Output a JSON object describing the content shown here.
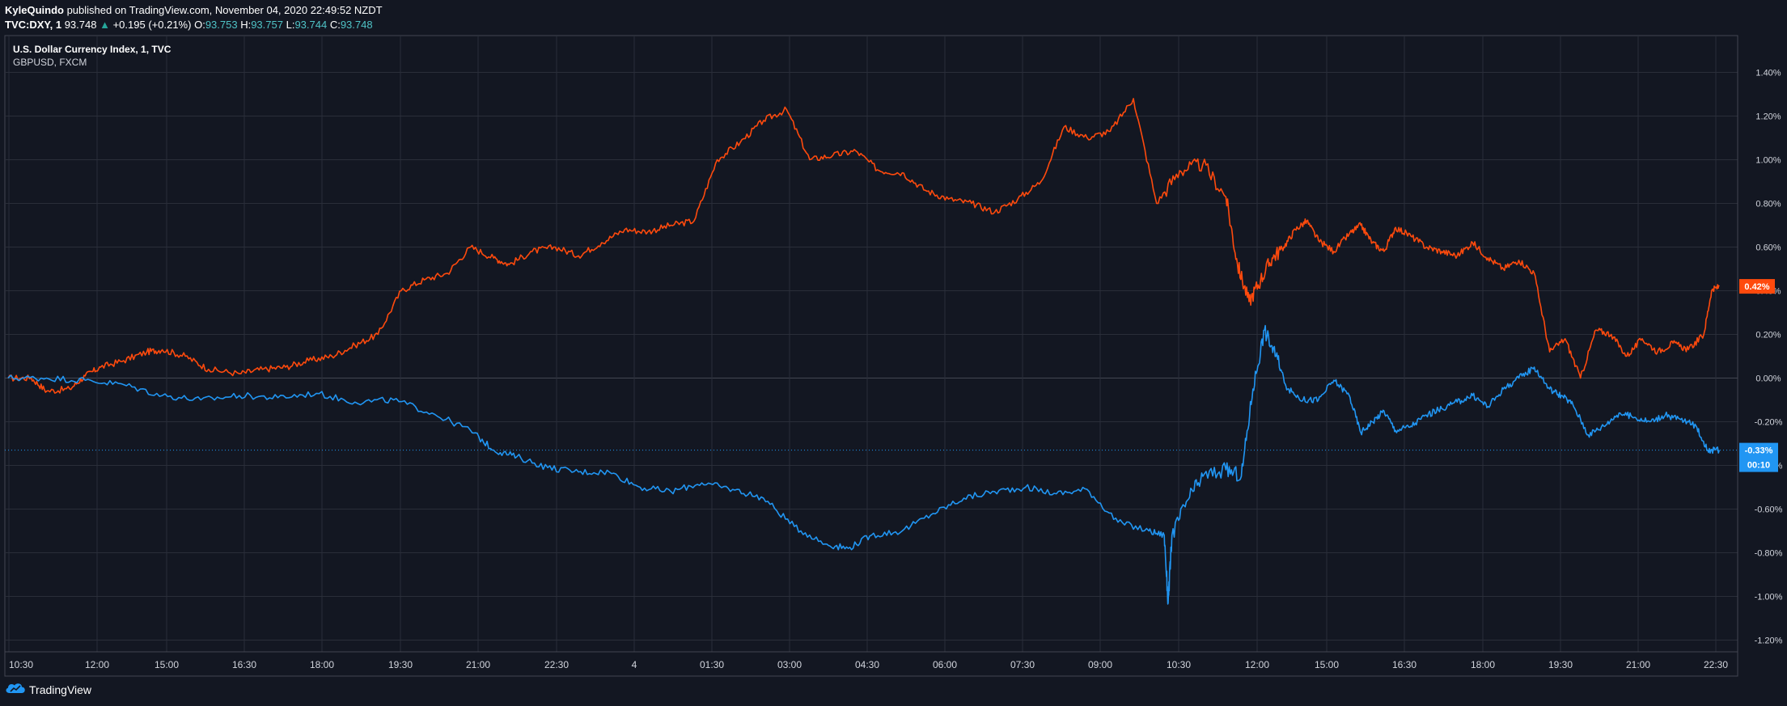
{
  "header": {
    "author": "KyleQuindo",
    "published_text": "published on TradingView.com, November 04, 2020 22:49:52 NZDT",
    "symbol": "TVC:DXY, 1",
    "last": "93.748",
    "up_arrow": "▲",
    "change": "+0.195 (+0.21%)",
    "o_label": "O:",
    "o_value": "93.753",
    "h_label": "H:",
    "h_value": "93.757",
    "l_label": "L:",
    "l_value": "93.744",
    "c_label": "C:",
    "c_value": "93.748"
  },
  "footer": {
    "brand": "TradingView",
    "icon": "tradingview-cloud-icon"
  },
  "colors": {
    "background": "#131722",
    "grid": "#2a2e39",
    "text": "#d1d4dc",
    "dxy": "#2196f3",
    "gbpusd": "#ff4a0d"
  },
  "chart_data": {
    "type": "line",
    "legend": [
      "U.S. Dollar Currency Index, 1, TVC",
      "GBPUSD, FXCM"
    ],
    "x_ticks": [
      "10:30",
      "12:00",
      "15:00",
      "16:30",
      "18:00",
      "19:30",
      "21:00",
      "22:30",
      "4",
      "01:30",
      "03:00",
      "04:30",
      "06:00",
      "07:30",
      "09:00",
      "10:30",
      "12:00",
      "15:00",
      "16:30",
      "18:00",
      "19:30",
      "21:00",
      "22:30"
    ],
    "y_ticks": [
      "1.40%",
      "1.20%",
      "1.00%",
      "0.80%",
      "0.60%",
      "0.40%",
      "0.20%",
      "0.00%",
      "-0.20%",
      "-0.40%",
      "-0.60%",
      "-0.80%",
      "-1.00%",
      "-1.20%"
    ],
    "y_tick_values": [
      1.4,
      1.2,
      1.0,
      0.8,
      0.6,
      0.4,
      0.2,
      0.0,
      -0.2,
      -0.4,
      -0.6,
      -0.8,
      -1.0,
      -1.2
    ],
    "ylim": [
      -1.3,
      1.55
    ],
    "x_range": [
      0,
      22.25
    ],
    "series": [
      {
        "name": "GBPUSD, FXCM",
        "last_label": "0.42%",
        "x": [
          0,
          0.3,
          0.5,
          0.8,
          1.0,
          1.2,
          1.5,
          1.8,
          2.0,
          2.3,
          2.6,
          3.0,
          3.3,
          3.6,
          3.9,
          4.2,
          4.5,
          4.8,
          5.1,
          5.4,
          5.7,
          6.0,
          6.3,
          6.5,
          6.8,
          7.1,
          7.4,
          7.7,
          8.0,
          8.3,
          8.6,
          8.9,
          9.2,
          9.5,
          9.8,
          10.1,
          10.4,
          10.7,
          11.0,
          11.3,
          11.6,
          11.9,
          12.2,
          12.5,
          12.8,
          13.1,
          13.4,
          13.7,
          14.0,
          14.3,
          14.6,
          14.9,
          15.2,
          15.5,
          15.8,
          15.95,
          16.1,
          16.25,
          16.4,
          16.55,
          16.7,
          16.85,
          17.0,
          17.2,
          17.4,
          17.55,
          17.7,
          17.85,
          18.0,
          18.2,
          18.4,
          18.6,
          18.8,
          19.0,
          19.2,
          19.4,
          19.6,
          19.8,
          20.0,
          20.2,
          20.4,
          20.6,
          20.8,
          21.0,
          21.2,
          21.4,
          21.6,
          21.8,
          22.0,
          22.1,
          22.2
        ],
        "y": [
          0.0,
          0.0,
          -0.06,
          -0.05,
          0.01,
          0.05,
          0.08,
          0.12,
          0.13,
          0.1,
          0.04,
          0.02,
          0.04,
          0.05,
          0.08,
          0.1,
          0.15,
          0.2,
          0.4,
          0.45,
          0.48,
          0.6,
          0.55,
          0.52,
          0.58,
          0.6,
          0.56,
          0.62,
          0.68,
          0.67,
          0.7,
          0.72,
          1.0,
          1.08,
          1.18,
          1.23,
          1.0,
          1.02,
          1.04,
          0.95,
          0.94,
          0.86,
          0.82,
          0.8,
          0.76,
          0.82,
          0.9,
          1.15,
          1.1,
          1.13,
          1.28,
          0.8,
          0.95,
          0.98,
          0.83,
          0.52,
          0.35,
          0.45,
          0.55,
          0.6,
          0.68,
          0.72,
          0.63,
          0.58,
          0.66,
          0.7,
          0.62,
          0.58,
          0.69,
          0.65,
          0.6,
          0.58,
          0.56,
          0.62,
          0.55,
          0.5,
          0.54,
          0.48,
          0.12,
          0.18,
          0.0,
          0.22,
          0.2,
          0.1,
          0.18,
          0.12,
          0.16,
          0.13,
          0.2,
          0.4,
          0.42
        ]
      },
      {
        "name": "U.S. Dollar Currency Index, 1, TVC",
        "last_label": "-0.33%",
        "last_sub_label": "00:10",
        "x": [
          0,
          0.5,
          1.0,
          1.5,
          2.0,
          2.5,
          3.0,
          3.5,
          4.0,
          4.5,
          5.0,
          5.5,
          6.0,
          6.3,
          6.6,
          7.0,
          7.4,
          7.8,
          8.2,
          8.6,
          9.0,
          9.4,
          9.8,
          10.2,
          10.6,
          10.9,
          11.2,
          11.6,
          12.0,
          12.4,
          12.8,
          13.2,
          13.6,
          14.0,
          14.4,
          14.8,
          15.0,
          15.05,
          15.1,
          15.3,
          15.5,
          15.8,
          16.0,
          16.15,
          16.3,
          16.45,
          16.6,
          16.8,
          17.0,
          17.2,
          17.4,
          17.55,
          17.7,
          17.85,
          18.0,
          18.2,
          18.4,
          18.6,
          18.8,
          19.0,
          19.2,
          19.4,
          19.6,
          19.8,
          20.0,
          20.15,
          20.3,
          20.5,
          20.7,
          20.9,
          21.1,
          21.3,
          21.5,
          21.7,
          21.9,
          22.05,
          22.2
        ],
        "y": [
          0.0,
          0.0,
          -0.01,
          -0.03,
          -0.08,
          -0.1,
          -0.08,
          -0.09,
          -0.07,
          -0.11,
          -0.1,
          -0.16,
          -0.24,
          -0.33,
          -0.36,
          -0.41,
          -0.43,
          -0.43,
          -0.5,
          -0.52,
          -0.48,
          -0.51,
          -0.55,
          -0.68,
          -0.76,
          -0.78,
          -0.72,
          -0.7,
          -0.62,
          -0.55,
          -0.52,
          -0.5,
          -0.53,
          -0.51,
          -0.66,
          -0.7,
          -0.72,
          -1.03,
          -0.72,
          -0.56,
          -0.45,
          -0.42,
          -0.45,
          -0.05,
          0.22,
          0.1,
          -0.05,
          -0.1,
          -0.1,
          -0.01,
          -0.08,
          -0.25,
          -0.2,
          -0.15,
          -0.24,
          -0.22,
          -0.17,
          -0.14,
          -0.11,
          -0.08,
          -0.13,
          -0.05,
          0.0,
          0.05,
          -0.05,
          -0.08,
          -0.12,
          -0.26,
          -0.22,
          -0.16,
          -0.18,
          -0.2,
          -0.17,
          -0.19,
          -0.22,
          -0.33,
          -0.33
        ]
      }
    ]
  }
}
